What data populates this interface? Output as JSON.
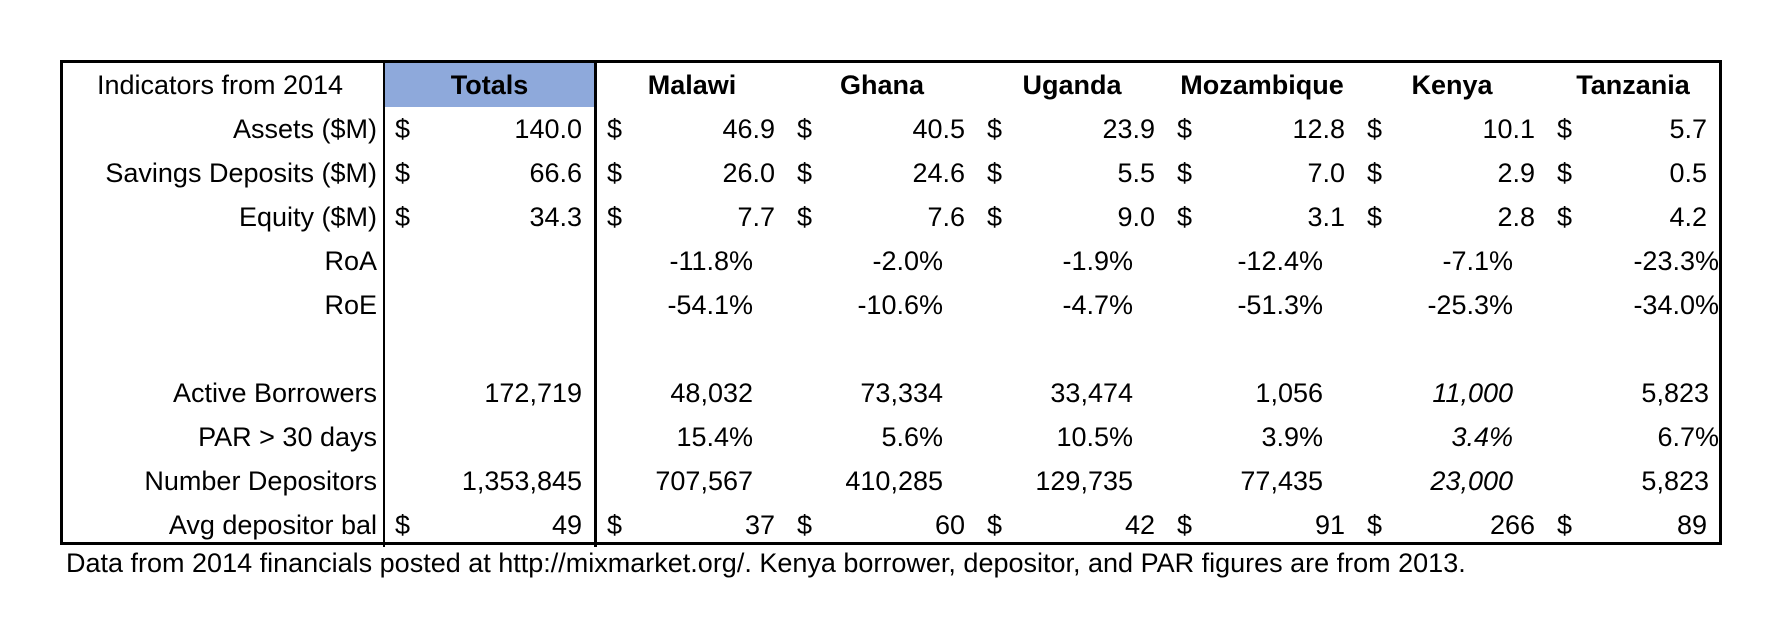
{
  "header": {
    "title": "Indicators from 2014",
    "totals": "Totals",
    "countries": [
      "Malawi",
      "Ghana",
      "Uganda",
      "Mozambique",
      "Kenya",
      "Tanzania"
    ]
  },
  "currency_symbol": "$",
  "rows": {
    "assets": {
      "label": "Assets ($M)",
      "total": "140.0",
      "values": [
        "46.9",
        "40.5",
        "23.9",
        "12.8",
        "10.1",
        "5.7"
      ]
    },
    "savings": {
      "label": "Savings Deposits ($M)",
      "total": "66.6",
      "values": [
        "26.0",
        "24.6",
        "5.5",
        "7.0",
        "2.9",
        "0.5"
      ]
    },
    "equity": {
      "label": "Equity ($M)",
      "total": "34.3",
      "values": [
        "7.7",
        "7.6",
        "9.0",
        "3.1",
        "2.8",
        "4.2"
      ]
    },
    "roa": {
      "label": "RoA",
      "values": [
        "-11.8%",
        "-2.0%",
        "-1.9%",
        "-12.4%",
        "-7.1%",
        "-23.3%"
      ]
    },
    "roe": {
      "label": "RoE",
      "values": [
        "-54.1%",
        "-10.6%",
        "-4.7%",
        "-51.3%",
        "-25.3%",
        "-34.0%"
      ]
    },
    "borrowers": {
      "label": "Active Borrowers",
      "total": "172,719",
      "values": [
        "48,032",
        "73,334",
        "33,474",
        "1,056",
        "11,000",
        "5,823"
      ]
    },
    "par": {
      "label": "PAR > 30 days",
      "values": [
        "15.4%",
        "5.6%",
        "10.5%",
        "3.9%",
        "3.4%",
        "6.7%"
      ]
    },
    "depositors": {
      "label": "Number Depositors",
      "total": "1,353,845",
      "values": [
        "707,567",
        "410,285",
        "129,735",
        "77,435",
        "23,000",
        "5,823"
      ]
    },
    "avgbal": {
      "label": "Avg depositor bal",
      "total": "49",
      "values": [
        "37",
        "60",
        "42",
        "91",
        "266",
        "89"
      ]
    }
  },
  "footnote": "Data from 2014 financials posted at http://mixmarket.org/.  Kenya borrower, depositor, and PAR figures are from 2013."
}
